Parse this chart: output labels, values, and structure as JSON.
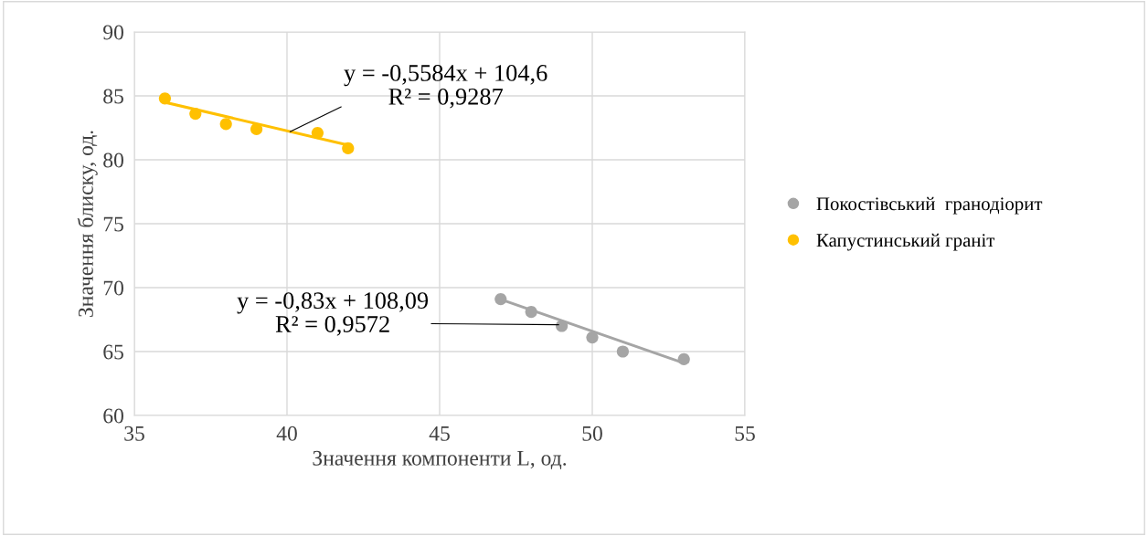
{
  "chart_data": {
    "type": "scatter",
    "xlabel": "Значення компоненти L, од.",
    "ylabel": "Значення блиску, од.",
    "series": [
      {
        "name": "Покостівський  гранодіорит",
        "color": "#a5a5a5",
        "x": [
          47,
          48,
          49,
          50,
          51,
          53
        ],
        "values": [
          69.1,
          68.1,
          67.0,
          66.1,
          65.0,
          64.4
        ]
      },
      {
        "name": "Капустинський граніт",
        "color": "#ffc000",
        "x": [
          36,
          37,
          38,
          39,
          41,
          42
        ],
        "values": [
          84.8,
          83.6,
          82.8,
          82.4,
          82.1,
          80.9
        ]
      },
      {
        "type": "line",
        "marker": "none",
        "color": "#a5a5a5",
        "x": [
          47,
          53
        ],
        "values": [
          69.08,
          64.1
        ]
      },
      {
        "type": "line",
        "marker": "none",
        "color": "#ffc000",
        "x": [
          36,
          42
        ],
        "values": [
          84.5,
          81.15
        ]
      }
    ],
    "annotations": [
      {
        "text": "y = -0,5584x + 104,6\nR² = 0,9287",
        "x": 40.1,
        "y": 82.2
      },
      {
        "text": "y = -0,83x + 108,09\nR² = 0,9572",
        "x": 48.9,
        "y": 67.1
      }
    ],
    "xlim": [
      35,
      55
    ],
    "xticks": [
      35,
      40,
      45,
      50,
      55
    ],
    "ylim": [
      60,
      90
    ],
    "yticks": [
      60,
      65,
      70,
      75,
      80,
      85,
      90
    ],
    "grid": true,
    "legend": "right",
    "marker": "circle"
  }
}
